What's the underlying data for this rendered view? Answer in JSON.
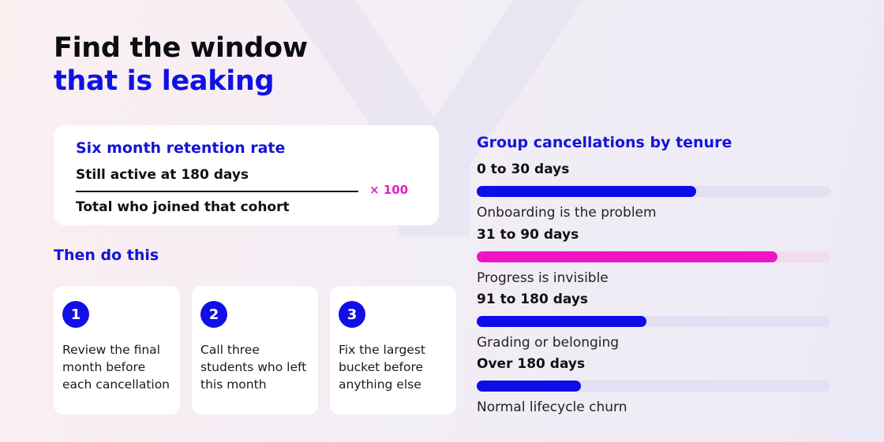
{
  "title": {
    "line1": "Find the window",
    "line2": "that is leaking"
  },
  "formula": {
    "title": "Six month retention rate",
    "numerator": "Still active at 180 days",
    "denominator": "Total who joined that cohort",
    "multiplier": "× 100"
  },
  "steps_title": "Then do this",
  "steps": [
    {
      "number": "1",
      "text": "Review the final month before each cancellation"
    },
    {
      "number": "2",
      "text": "Call three students who left this month"
    },
    {
      "number": "3",
      "text": "Fix the largest bucket before anything else"
    }
  ],
  "cancellations": {
    "title": "Group cancellations by tenure",
    "buckets": [
      {
        "label": "0 to 30 days",
        "note": "Onboarding is the problem",
        "fill_fraction": 0.62,
        "color": "#0d0de8",
        "track_color": "#e3e0f4"
      },
      {
        "label": "31 to 90 days",
        "note": "Progress is invisible",
        "fill_fraction": 0.85,
        "color": "#f014c8",
        "track_color": "#f1dcef"
      },
      {
        "label": "91 to 180 days",
        "note": "Grading or belonging",
        "fill_fraction": 0.48,
        "color": "#0d0de8",
        "track_color": "#e3e0f4"
      },
      {
        "label": "Over 180 days",
        "note": "Normal lifecycle churn",
        "fill_fraction": 0.295,
        "color": "#0d0de8",
        "track_color": "#e3e0f4"
      }
    ]
  }
}
